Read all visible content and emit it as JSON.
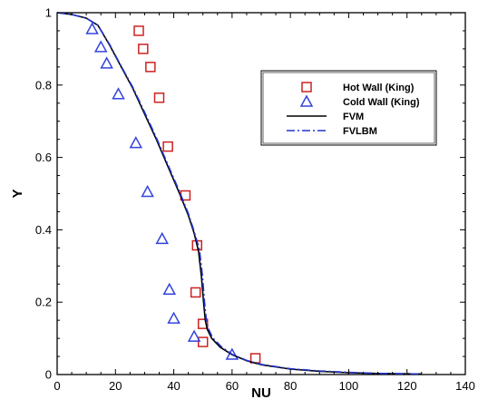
{
  "chart_data": {
    "type": "line",
    "title": "",
    "xlabel": "NU",
    "ylabel": "Y",
    "xlim": [
      0,
      140
    ],
    "ylim": [
      0,
      1
    ],
    "xticks": [
      0,
      20,
      40,
      60,
      80,
      100,
      120,
      140
    ],
    "yticks": [
      0,
      0.2,
      0.4,
      0.6,
      0.8,
      1
    ],
    "x_tick_labels": [
      "0",
      "20",
      "40",
      "60",
      "80",
      "100",
      "120",
      "140"
    ],
    "y_tick_labels": [
      "0",
      "0.2",
      "0.4",
      "0.6",
      "0.8",
      "1"
    ],
    "grid": false,
    "legend_position": "top-right",
    "series": [
      {
        "name": "Hot Wall (King)",
        "kind": "scatter",
        "marker": "square",
        "color": "#cc2222",
        "x": [
          28,
          29.5,
          32,
          35,
          38,
          44,
          48,
          47.5,
          50,
          50,
          68
        ],
        "y": [
          0.95,
          0.9,
          0.85,
          0.765,
          0.63,
          0.495,
          0.357,
          0.227,
          0.14,
          0.09,
          0.045
        ]
      },
      {
        "name": "Cold Wall (King)",
        "kind": "scatter",
        "marker": "triangle",
        "color": "#3344dd",
        "x": [
          12,
          15,
          17,
          21,
          27,
          31,
          36,
          38.5,
          40,
          47,
          60
        ],
        "y": [
          0.955,
          0.905,
          0.86,
          0.775,
          0.64,
          0.505,
          0.375,
          0.235,
          0.155,
          0.105,
          0.055
        ]
      },
      {
        "name": "FVM",
        "kind": "line",
        "style": "solid",
        "color": "#000000",
        "x": [
          0,
          5,
          10,
          14,
          18,
          22,
          26,
          30,
          34,
          38,
          42,
          45,
          47,
          48.5,
          49.5,
          50.2,
          50.8,
          51.5,
          53,
          56,
          60,
          65,
          70,
          80,
          90,
          100,
          110,
          120,
          125
        ],
        "y": [
          1,
          0.995,
          0.985,
          0.965,
          0.91,
          0.85,
          0.79,
          0.72,
          0.65,
          0.575,
          0.5,
          0.44,
          0.39,
          0.34,
          0.27,
          0.2,
          0.15,
          0.125,
          0.1,
          0.075,
          0.055,
          0.038,
          0.027,
          0.015,
          0.009,
          0.005,
          0.003,
          0.002,
          0.0015
        ]
      },
      {
        "name": "FVLBM",
        "kind": "line",
        "style": "dashdot",
        "color": "#2233cc",
        "x": [
          0,
          5,
          10,
          14,
          18,
          22,
          26,
          30,
          34,
          38,
          42,
          45,
          47,
          48.8,
          49.8,
          50.5,
          51.1,
          51.8,
          53.3,
          56.3,
          60,
          65,
          70,
          80,
          90,
          100,
          110,
          120,
          125
        ],
        "y": [
          1,
          0.995,
          0.985,
          0.965,
          0.912,
          0.852,
          0.793,
          0.725,
          0.655,
          0.58,
          0.505,
          0.445,
          0.395,
          0.345,
          0.275,
          0.205,
          0.155,
          0.128,
          0.102,
          0.077,
          0.056,
          0.039,
          0.028,
          0.016,
          0.01,
          0.006,
          0.003,
          0.002,
          0.0015
        ]
      }
    ]
  }
}
